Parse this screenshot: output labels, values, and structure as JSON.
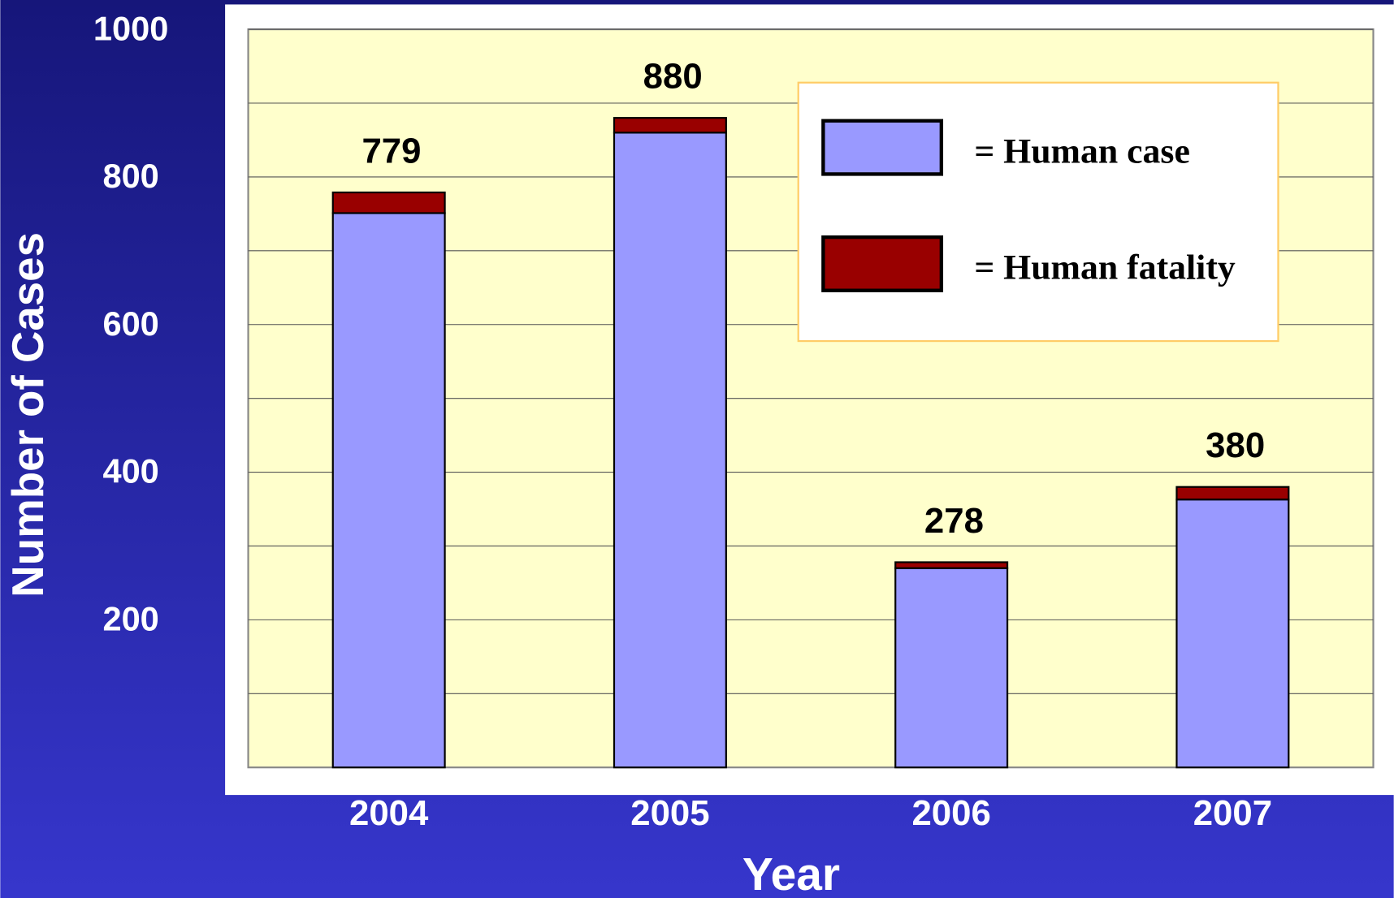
{
  "chart_data": {
    "type": "stacked_bar",
    "x_label": "Year",
    "y_label": "Number of Cases",
    "categories": [
      "2004",
      "2005",
      "2006",
      "2007"
    ],
    "series": [
      {
        "name": "= Human case",
        "color": "#9999ff",
        "values": [
          751,
          860,
          270,
          363
        ]
      },
      {
        "name": "= Human fatality",
        "color": "#990000",
        "values": [
          28,
          20,
          8,
          17
        ]
      }
    ],
    "totals": [
      779,
      880,
      278,
      380
    ],
    "ylim": [
      0,
      1000
    ],
    "yticks": [
      200,
      400,
      600,
      800,
      1000
    ],
    "grid": true,
    "legend": "upper right"
  }
}
